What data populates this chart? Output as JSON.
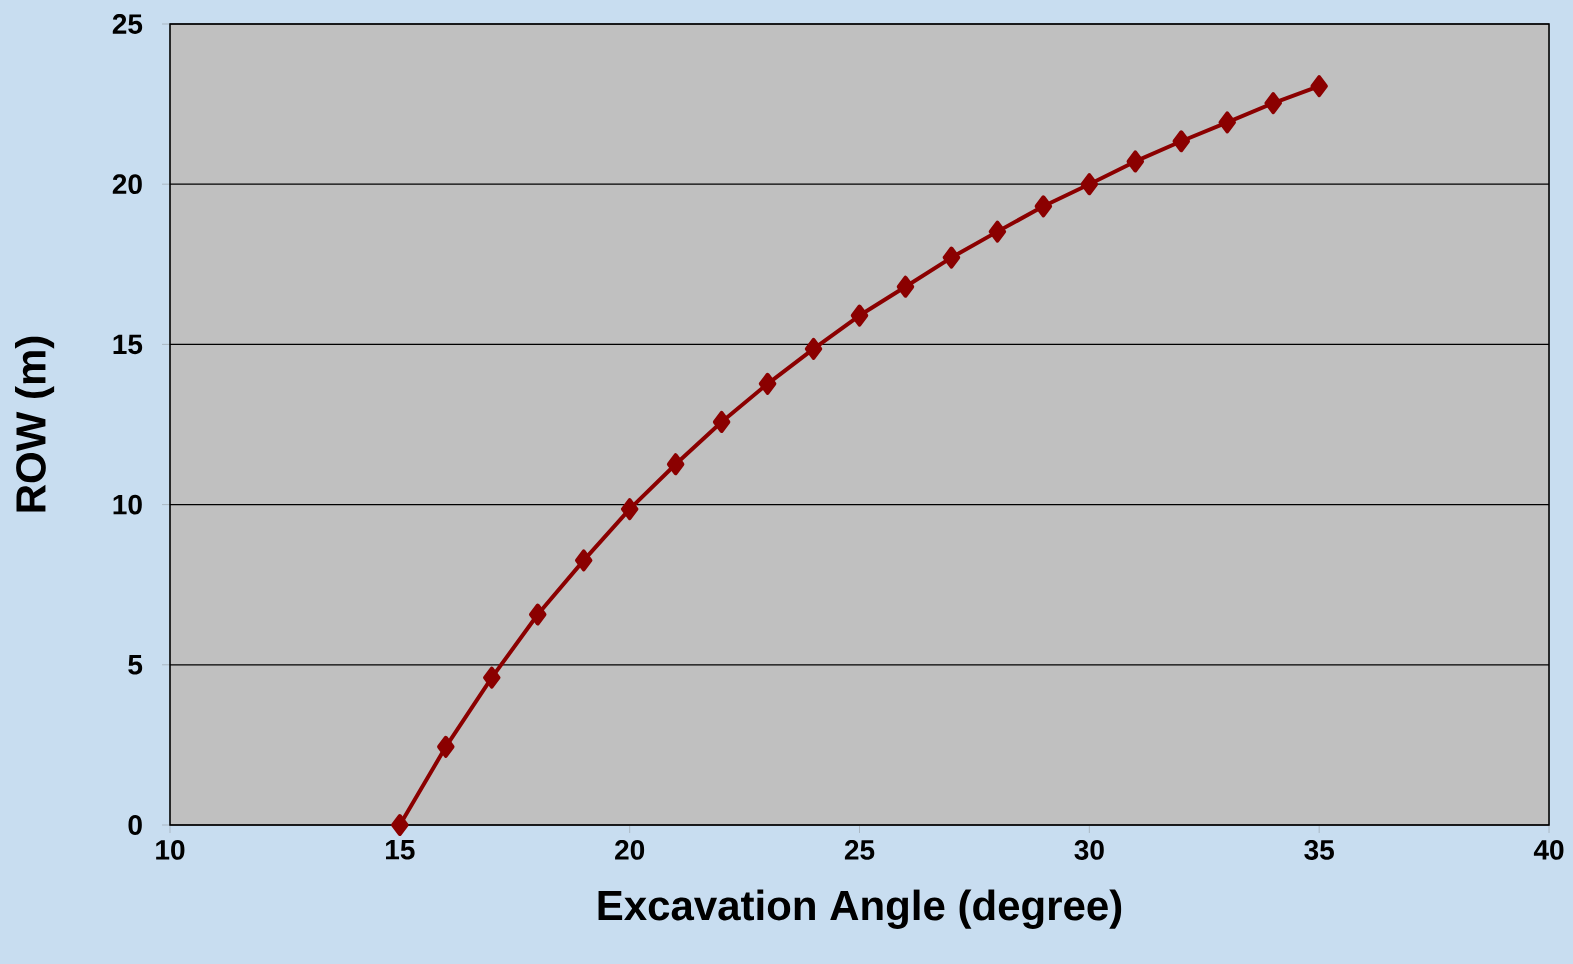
{
  "chart_data": {
    "type": "line",
    "xlabel": "Excavation  Angle  (degree)",
    "ylabel": "ROW (m)",
    "x": [
      15,
      16,
      17,
      18,
      19,
      20,
      21,
      22,
      23,
      24,
      25,
      26,
      27,
      28,
      29,
      30,
      31,
      32,
      33,
      34,
      35
    ],
    "series": [
      {
        "color": "#8b0000",
        "values": [
          0,
          2.44,
          4.6,
          6.57,
          8.26,
          9.86,
          11.26,
          12.58,
          13.77,
          14.86,
          15.9,
          16.8,
          17.71,
          18.52,
          19.31,
          20.0,
          20.71,
          21.34,
          21.93,
          22.53,
          23.06
        ]
      }
    ],
    "xlim": [
      10,
      40
    ],
    "xticks": [
      10,
      15,
      20,
      25,
      30,
      35,
      40
    ],
    "ylim": [
      0,
      25
    ],
    "yticks": [
      0,
      5,
      10,
      15,
      20,
      25
    ],
    "grid": "y",
    "marker": "diamond",
    "line_style": "solid"
  }
}
